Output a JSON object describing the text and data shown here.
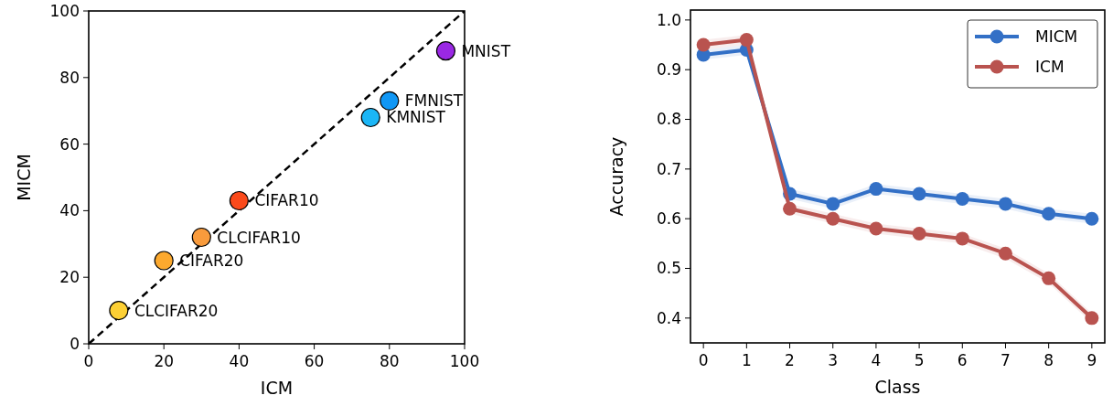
{
  "chart_data": [
    {
      "type": "scatter",
      "xlabel": "ICM",
      "ylabel": "MICM",
      "xlim": [
        0,
        100
      ],
      "ylim": [
        0,
        100
      ],
      "xticks": [
        0,
        20,
        40,
        60,
        80,
        100
      ],
      "yticks": [
        0,
        20,
        40,
        60,
        80,
        100
      ],
      "grid": false,
      "legend": false,
      "marker": "circle",
      "series": [
        {
          "type": "line",
          "x": [
            0,
            100
          ],
          "values": [
            0,
            100
          ],
          "color": "#000000",
          "line_style": "dashed",
          "marker": "none"
        },
        {
          "type": "scatter",
          "x": [
            8,
            20,
            30,
            40,
            75,
            80,
            95
          ],
          "values": [
            10,
            25,
            32,
            43,
            68,
            73,
            88
          ],
          "colors": [
            "#fdd034",
            "#fca92e",
            "#f99b3c",
            "#fb4a1b",
            "#1bb6f6",
            "#1097f5",
            "#9a28e4"
          ]
        }
      ],
      "annotations": [
        {
          "text": "CLCIFAR20",
          "x": 8,
          "y": 10
        },
        {
          "text": "CIFAR20",
          "x": 20,
          "y": 25
        },
        {
          "text": "CLCIFAR10",
          "x": 30,
          "y": 32
        },
        {
          "text": "CIFAR10",
          "x": 40,
          "y": 43
        },
        {
          "text": "KMNIST",
          "x": 75,
          "y": 68
        },
        {
          "text": "FMNIST",
          "x": 80,
          "y": 73
        },
        {
          "text": "MNIST",
          "x": 95,
          "y": 88
        }
      ]
    },
    {
      "type": "line",
      "xlabel": "Class",
      "ylabel": "Accuracy",
      "categories": [
        "0",
        "1",
        "2",
        "3",
        "4",
        "5",
        "6",
        "7",
        "8",
        "9"
      ],
      "ylim": [
        0.35,
        1.02
      ],
      "yticks": [
        {
          "value": 0.4,
          "label": "0.4"
        },
        {
          "value": 0.5,
          "label": "0.5"
        },
        {
          "value": 0.6,
          "label": "0.6"
        },
        {
          "value": 0.7,
          "label": "0.7"
        },
        {
          "value": 0.8,
          "label": "0.8"
        },
        {
          "value": 0.9,
          "label": "0.9"
        },
        {
          "value": 1.0,
          "label": "1.0"
        }
      ],
      "grid": false,
      "legend": "top right",
      "marker": "circle",
      "series": [
        {
          "name": "MICM",
          "color": "#3370c6",
          "values": [
            0.93,
            0.94,
            0.65,
            0.63,
            0.66,
            0.65,
            0.64,
            0.63,
            0.61,
            0.6
          ],
          "lower": [
            0.92,
            0.93,
            0.64,
            0.62,
            0.65,
            0.64,
            0.63,
            0.62,
            0.6,
            0.59
          ],
          "upper": [
            0.94,
            0.95,
            0.66,
            0.64,
            0.67,
            0.66,
            0.65,
            0.64,
            0.62,
            0.61
          ]
        },
        {
          "name": "ICM",
          "color": "#b9534f",
          "values": [
            0.95,
            0.96,
            0.62,
            0.6,
            0.58,
            0.57,
            0.56,
            0.53,
            0.48,
            0.4
          ],
          "lower": [
            0.94,
            0.95,
            0.61,
            0.59,
            0.57,
            0.56,
            0.55,
            0.52,
            0.47,
            0.39
          ],
          "upper": [
            0.96,
            0.97,
            0.63,
            0.61,
            0.59,
            0.58,
            0.57,
            0.54,
            0.49,
            0.41
          ]
        }
      ]
    }
  ]
}
